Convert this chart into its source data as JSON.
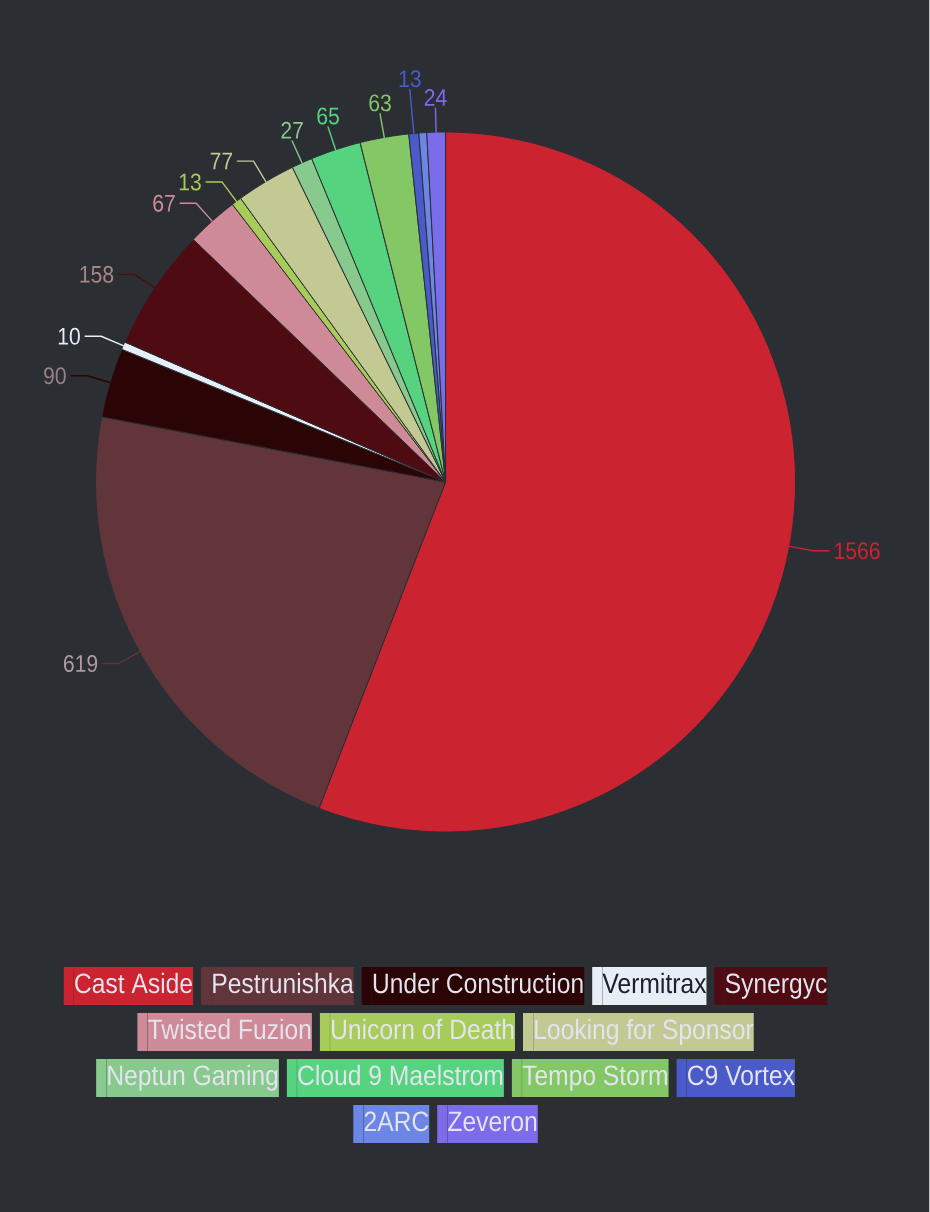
{
  "chart_data": {
    "type": "pie",
    "categories": [
      "Cast Aside",
      "Pestrunishka",
      "Under Construction",
      "Vermitrax",
      "Synergyc",
      "Twisted Fuzion",
      "Unicorn of Death",
      "Looking for Sponsor",
      "Neptun Gaming",
      "Cloud 9 Maelstrom",
      "Tempo Storm",
      "C9 Vortex",
      "2ARC",
      "Zeveron"
    ],
    "values": [
      1566,
      619,
      90,
      10,
      158,
      67,
      13,
      77,
      27,
      65,
      63,
      13,
      10,
      24
    ],
    "value_labels": [
      "1566",
      "619",
      "90",
      "10",
      "158",
      "67",
      "13",
      "77",
      "27",
      "65",
      "63",
      "13",
      null,
      "24"
    ],
    "colors": [
      "#cc2330",
      "#62353b",
      "#2b0506",
      "#e6eef8",
      "#4e0c12",
      "#cf8a98",
      "#a8cc5a",
      "#c2c993",
      "#88c98d",
      "#56d37e",
      "#84c865",
      "#4a5bc9",
      "#6c86e6",
      "#7b6cec"
    ],
    "legend": "bottom"
  }
}
